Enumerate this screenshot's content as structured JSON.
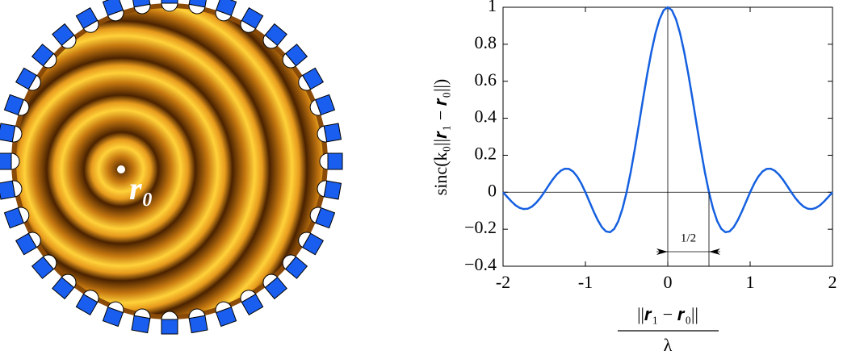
{
  "figure_panel": {
    "label": "r₀"
  },
  "chart_data": {
    "type": "line",
    "y_label": "sinc(k₀||𝒓₁ − 𝒓₀||)",
    "x_label_numerator": "||𝒓₁ − 𝒓₀||",
    "x_label_denominator": "λ",
    "annotation": "1/2",
    "x": [
      -2,
      -1.95,
      -1.9,
      -1.85,
      -1.8,
      -1.75,
      -1.7,
      -1.65,
      -1.6,
      -1.55,
      -1.5,
      -1.45,
      -1.4,
      -1.35,
      -1.3,
      -1.25,
      -1.2,
      -1.15,
      -1.1,
      -1.05,
      -1,
      -0.95,
      -0.9,
      -0.85,
      -0.8,
      -0.75,
      -0.7,
      -0.65,
      -0.6,
      -0.55,
      -0.5,
      -0.45,
      -0.4,
      -0.35,
      -0.3,
      -0.25,
      -0.2,
      -0.15,
      -0.1,
      -0.05,
      0,
      0.05,
      0.1,
      0.15,
      0.2,
      0.25,
      0.3,
      0.35,
      0.4,
      0.45,
      0.5,
      0.55,
      0.6,
      0.65,
      0.7,
      0.75,
      0.8,
      0.85,
      0.9,
      0.95,
      1,
      1.05,
      1.1,
      1.15,
      1.2,
      1.25,
      1.3,
      1.35,
      1.4,
      1.45,
      1.5,
      1.55,
      1.6,
      1.65,
      1.7,
      1.75,
      1.8,
      1.85,
      1.9,
      1.95,
      2
    ],
    "series": [
      {
        "color": "#1560e0",
        "values": [
          0,
          -0.025,
          -0.049,
          -0.07,
          -0.084,
          -0.091,
          -0.089,
          -0.078,
          -0.058,
          -0.032,
          0,
          0.034,
          0.067,
          0.095,
          0.116,
          0.127,
          0.126,
          0.112,
          0.085,
          0.047,
          0,
          -0.052,
          -0.104,
          -0.151,
          -0.189,
          -0.212,
          -0.216,
          -0.198,
          -0.156,
          -0.089,
          0,
          0.109,
          0.234,
          0.368,
          0.505,
          0.637,
          0.757,
          0.858,
          0.935,
          0.984,
          1,
          0.984,
          0.935,
          0.858,
          0.757,
          0.637,
          0.505,
          0.368,
          0.234,
          0.109,
          0,
          -0.089,
          -0.156,
          -0.198,
          -0.216,
          -0.212,
          -0.189,
          -0.151,
          -0.104,
          -0.052,
          0,
          0.047,
          0.085,
          0.112,
          0.126,
          0.127,
          0.116,
          0.095,
          0.067,
          0.034,
          0,
          -0.032,
          -0.058,
          -0.078,
          -0.089,
          -0.091,
          -0.084,
          -0.07,
          -0.049,
          -0.025,
          0
        ]
      }
    ],
    "xlim": [
      -2,
      2
    ],
    "xticks": [
      -2,
      -1,
      0,
      1,
      2
    ],
    "ylim": [
      -0.4,
      1
    ],
    "yticks": [
      {
        "value": -0.4,
        "label": "−0.4"
      },
      {
        "value": -0.2,
        "label": "−0.2"
      },
      0,
      0.2,
      0.4,
      0.6,
      0.8,
      1
    ]
  }
}
